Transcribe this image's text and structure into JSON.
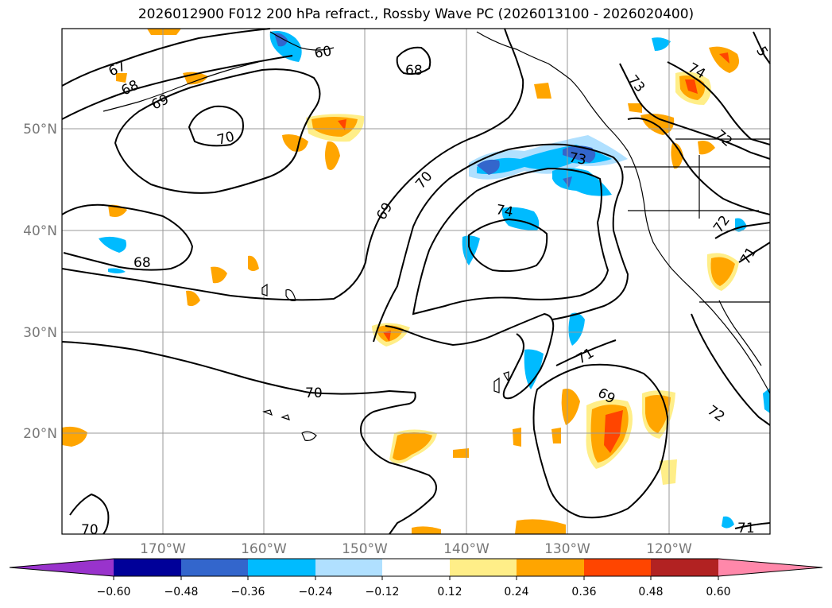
{
  "title": "2026012900 F012 200 hPa refract., Rossby Wave PC (2026013100 - 2026020400)",
  "lat_labels": [
    "50°N",
    "40°N",
    "30°N",
    "20°N"
  ],
  "lon_labels": [
    "170°W",
    "160°W",
    "150°W",
    "140°W",
    "130°W",
    "120°W"
  ],
  "contour_labels": [
    "67",
    "68",
    "69",
    "70",
    "68",
    "70",
    "69",
    "70",
    "73",
    "74",
    "71",
    "69",
    "68",
    "70",
    "74",
    "73",
    "72",
    "72",
    "71",
    "72",
    "71",
    "5",
    "60"
  ],
  "colorbar": {
    "ticks": [
      "−0.60",
      "−0.48",
      "−0.36",
      "−0.24",
      "−0.12",
      "0.12",
      "0.24",
      "0.36",
      "0.48",
      "0.60"
    ],
    "colors": [
      "#9933cc",
      "#000099",
      "#3366cc",
      "#00bbff",
      "#b0e0ff",
      "#ffffff",
      "#ffee88",
      "#ffa500",
      "#ff4500",
      "#b22222",
      "#ff88aa"
    ]
  },
  "colors": {
    "grid": "#999999",
    "contour": "#000000",
    "neg_light": "#b0e0ff",
    "neg_mid": "#00bbff",
    "neg_dark": "#3366cc",
    "pos_light": "#ffee88",
    "pos_mid": "#ffa500",
    "pos_dark": "#ff4500"
  }
}
